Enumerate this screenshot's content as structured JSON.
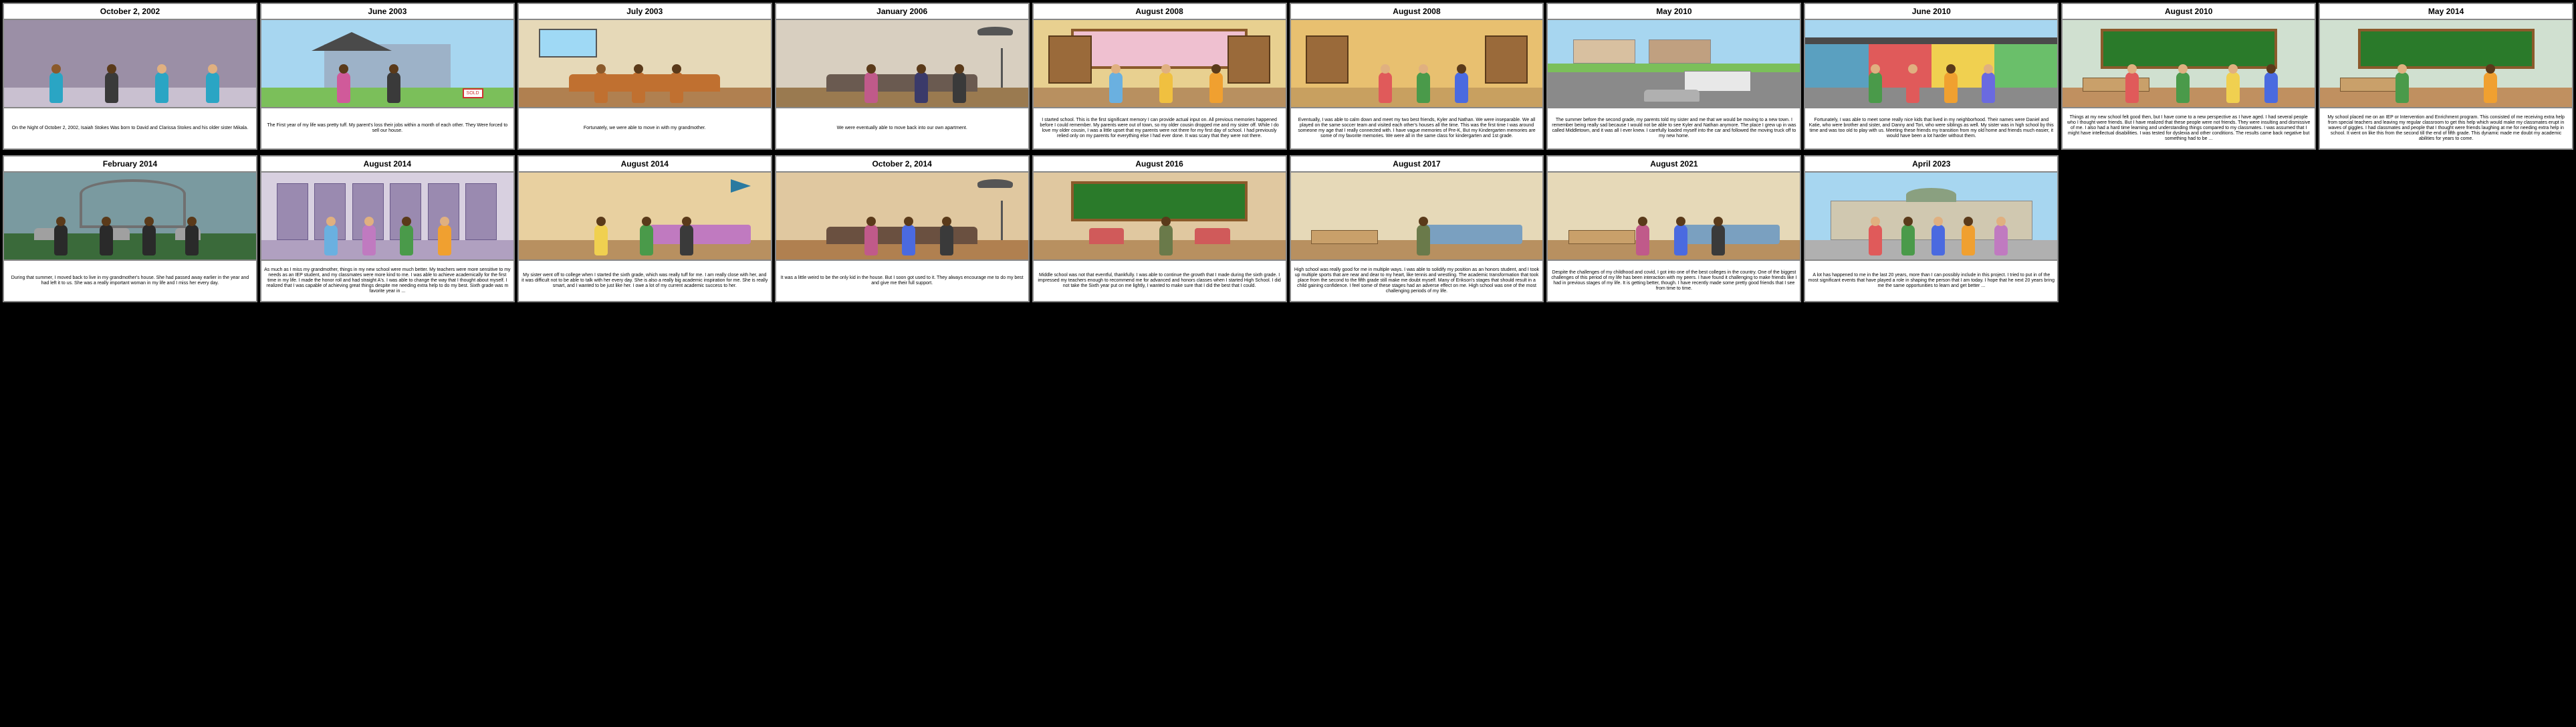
{
  "layout": {
    "rows": 2,
    "cols_row1": 10,
    "cols_row2": 8,
    "cell_border_color": "#888888",
    "page_bg": "#000000",
    "cell_bg": "#ffffff",
    "header_fontsize": 12,
    "caption_fontsize": 7
  },
  "cells": [
    {
      "date": "October 2, 2002",
      "caption": "On the Night of October 2, 2002, Isaiah Stokes Was born to David and Clarissa Stokes and his older sister Mikala.",
      "scene": {
        "type": "hospital-room",
        "wall_color": "#9b8fa6",
        "floor_color": "#c9c0d0",
        "accent_color": "#2aa5c4",
        "figures": [
          {
            "x": 18,
            "body": "#2aa5c4",
            "skin": "#8b5a2b"
          },
          {
            "x": 40,
            "body": "#3a3a3a",
            "skin": "#5a3a1a"
          },
          {
            "x": 60,
            "body": "#2aa5c4",
            "skin": "#e0b080"
          },
          {
            "x": 80,
            "body": "#2aa5c4",
            "skin": "#e0b080"
          }
        ]
      }
    },
    {
      "date": "June 2003",
      "caption": "The First year of my life was pretty tuff. My parent's loss their jobs within a month of each other. They Were forced to sell our house.",
      "scene": {
        "type": "house-exterior",
        "sky_color": "#a7d6f0",
        "grass_color": "#7bbf5a",
        "house_color": "#9db2c8",
        "roof_color": "#4a4a4a",
        "sign_text": "SOLD",
        "sign_color": "#d03030",
        "figures": [
          {
            "x": 30,
            "body": "#d05a9a",
            "skin": "#5a3a1a"
          },
          {
            "x": 50,
            "body": "#3a3a3a",
            "skin": "#5a3a1a"
          }
        ]
      }
    },
    {
      "date": "July 2003",
      "caption": "Fortunately, we were able to move in with my grandmother.",
      "scene": {
        "type": "living-room",
        "wall_color": "#e6d9b8",
        "floor_color": "#b08050",
        "sofa_color": "#c07030",
        "window_color": "#9fd9f5",
        "figures": [
          {
            "x": 30,
            "body": "#c07030",
            "skin": "#8b5a2b"
          },
          {
            "x": 45,
            "body": "#c07030",
            "skin": "#5a3a1a"
          },
          {
            "x": 60,
            "body": "#c07030",
            "skin": "#5a3a1a"
          }
        ]
      }
    },
    {
      "date": "January 2006",
      "caption": "We were eventually able to move back into our own apartment.",
      "scene": {
        "type": "apartment-living",
        "wall_color": "#d8cfc0",
        "floor_color": "#9a7a50",
        "sofa_color": "#6a5a50",
        "lamp_color": "#555555",
        "figures": [
          {
            "x": 35,
            "body": "#c05a8a",
            "skin": "#5a3a1a"
          },
          {
            "x": 55,
            "body": "#3a3a6a",
            "skin": "#5a3a1a"
          },
          {
            "x": 70,
            "body": "#3a3a3a",
            "skin": "#5a3a1a"
          }
        ]
      }
    },
    {
      "date": "August 2008",
      "caption": "I started school. This is the first significant memory I can provide actual input on. All previous memories happened before I could remember. My parents were out of town, so my older cousin dropped me and my sister off. While I do love my older cousin, I was a little upset that my parents were not there for my first day of school. I had previously relied only on my parents for everything else I had ever done. It was scary that they were not there.",
      "scene": {
        "type": "classroom",
        "wall_color": "#e8d090",
        "floor_color": "#b89060",
        "door_color": "#9a6a3a",
        "board_color": "#efc0d0",
        "figures": [
          {
            "x": 30,
            "body": "#6ab0e0",
            "skin": "#e0b080"
          },
          {
            "x": 50,
            "body": "#f0c040",
            "skin": "#e0b080"
          },
          {
            "x": 70,
            "body": "#f0a030",
            "skin": "#5a3a1a"
          }
        ]
      }
    },
    {
      "date": "August 2008",
      "caption": "Eventually, I was able to calm down and meet my two best friends, Kyler and Nathan. We were inseparable. We all played on the same soccer team and visited each other's houses all the time. This was the first time I was around someone my age that I really connected with. I have vague memories of Pre-K, But my Kindergarten memories are some of my favorite memories. We were all in the same class for kindergarten and 1st grade.",
      "scene": {
        "type": "hallway",
        "wall_color": "#e8c070",
        "floor_color": "#c8a060",
        "door_color": "#9a6a3a",
        "figures": [
          {
            "x": 35,
            "body": "#e05a5a",
            "skin": "#e0b080"
          },
          {
            "x": 50,
            "body": "#4a9a4a",
            "skin": "#e0b080"
          },
          {
            "x": 65,
            "body": "#4a6ae0",
            "skin": "#5a3a1a"
          }
        ]
      }
    },
    {
      "date": "May 2010",
      "caption": "The summer before the second grade, my parents told my sister and me that we would be moving to a new town. I remember being really sad because I would not be able to see Kyler and Nathan anymore. The place I grew up in was called Middletown, and it was all I ever knew. I carefully loaded myself into the car and followed the moving truck off to my new home.",
      "scene": {
        "type": "street-moving",
        "sky_color": "#a7d6f0",
        "road_color": "#8a8a8a",
        "grass_color": "#7bbf5a",
        "house_colors": [
          "#d8c0a0",
          "#c0a080"
        ],
        "truck_color": "#e8e8e8",
        "car_color": "#b0b0b0"
      }
    },
    {
      "date": "June 2010",
      "caption": "Fortunately, I was able to meet some really nice kids that lived in my neighborhood. Their names were Daniel and Katie, who were brother and sister, and Danny and Tori, who were siblings as well. My sister was in high school by this time and was too old to play with us. Meeting these friends my transition from my old home and friends much easier, it would have been a lot harder without them.",
      "scene": {
        "type": "rowhouses",
        "sky_color": "#a7d6f0",
        "road_color": "#8a8a8a",
        "house_colors": [
          "#5aa0c0",
          "#e05a5a",
          "#f0d050",
          "#6abf6a"
        ],
        "roof_color": "#4a4a4a",
        "figures": [
          {
            "x": 25,
            "body": "#4a9a4a",
            "skin": "#e0b080"
          },
          {
            "x": 40,
            "body": "#e05a5a",
            "skin": "#e0b080"
          },
          {
            "x": 55,
            "body": "#f0a030",
            "skin": "#5a3a1a"
          },
          {
            "x": 70,
            "body": "#6a6ae0",
            "skin": "#e0b080"
          }
        ]
      }
    },
    {
      "date": "August 2010",
      "caption": "Things at my new school felt good then, but I have come to a new perspective as I have aged. I had several people who I thought were friends. But I have realized that these people were not friends. They were insulting and dismissive of me. I also had a hard time learning and understanding things compared to my classmates. I was assumed that I might have intellectual disabilities. I was tested for dyslexia and other conditions. The results came back negative but something had to be ...",
      "scene": {
        "type": "classroom-green",
        "wall_color": "#d0e0d0",
        "floor_color": "#c09060",
        "board_color": "#2a7a2a",
        "desk_color": "#c9a06a",
        "figures": [
          {
            "x": 25,
            "body": "#e05a5a",
            "skin": "#e0b080"
          },
          {
            "x": 45,
            "body": "#4a9a4a",
            "skin": "#e0b080"
          },
          {
            "x": 65,
            "body": "#f0d050",
            "skin": "#e0b080"
          },
          {
            "x": 80,
            "body": "#4a6ae0",
            "skin": "#5a3a1a"
          }
        ]
      }
    },
    {
      "date": "May 2014",
      "caption": "My school placed me on an IEP or Intervention and Enrichment program. This consisted of me receiving extra help from special teachers and leaving my regular classroom to get this help which would make my classmates erupt in waves of giggles. I had classmates and people that I thought were friends laughing at me for needing extra help in school. It went on like this from the second till the end of fifth grade. This dynamic made me doubt my academic abilities for years to come.",
      "scene": {
        "type": "classroom-green",
        "wall_color": "#d0e0d0",
        "floor_color": "#c09060",
        "board_color": "#2a7a2a",
        "desk_color": "#c9a06a",
        "figures": [
          {
            "x": 30,
            "body": "#4a9a4a",
            "skin": "#e0b080"
          },
          {
            "x": 65,
            "body": "#f0a030",
            "skin": "#5a3a1a"
          }
        ]
      }
    },
    {
      "date": "February 2014",
      "caption": "During that summer, I moved back to live in my grandmother's house. She had passed away earlier in the year and had left it to us. She was a really important woman in my life and I miss her every day.",
      "scene": {
        "type": "cemetery",
        "sky_color": "#7a9aa0",
        "grass_color": "#3a6a3a",
        "stone_color": "#a0a0a0",
        "gate_color": "#707070",
        "figures": [
          {
            "x": 20,
            "body": "#2a2a2a",
            "skin": "#5a3a1a"
          },
          {
            "x": 38,
            "body": "#2a2a2a",
            "skin": "#5a3a1a"
          },
          {
            "x": 55,
            "body": "#2a2a2a",
            "skin": "#5a3a1a"
          },
          {
            "x": 72,
            "body": "#2a2a2a",
            "skin": "#5a3a1a"
          }
        ]
      }
    },
    {
      "date": "August 2014",
      "caption": "As much as I miss my grandmother, things in my new school were much better. My teachers were more sensitive to my needs as an IEP student, and my classmates were more kind to me. I was able to achieve academically for the first time in my life. I made the honor roll and had straight A's. I was able to change the way that I thought about myself. I realized that I was capable of achieving great things despite me needing extra help to do my best. Sixth grade was m favorite year in ...",
      "scene": {
        "type": "school-hallway",
        "wall_color": "#d8d0e0",
        "floor_color": "#b0a0c0",
        "locker_color": "#9a8ab0",
        "figures": [
          {
            "x": 25,
            "body": "#6ab0e0",
            "skin": "#e0b080"
          },
          {
            "x": 40,
            "body": "#c07ac0",
            "skin": "#e0b080"
          },
          {
            "x": 55,
            "body": "#4a9a4a",
            "skin": "#5a3a1a"
          },
          {
            "x": 70,
            "body": "#f0a030",
            "skin": "#e0b080"
          }
        ]
      }
    },
    {
      "date": "August 2014",
      "caption": "My sister went off to college when I started the sixth grade, which was really tuff for me. I am really close with her, and it was difficult not to be able to talk with her every day. She is also a really big academic inspiration for me. She is really smart, and I wanted to be just like her. I owe a lot of my current academic success to her.",
      "scene": {
        "type": "bedroom",
        "wall_color": "#e8d0a0",
        "floor_color": "#b89060",
        "bed_color": "#c07ac0",
        "pennant_color": "#2a7aa0",
        "figures": [
          {
            "x": 30,
            "body": "#f0d050",
            "skin": "#5a3a1a"
          },
          {
            "x": 48,
            "body": "#4a9a4a",
            "skin": "#5a3a1a"
          },
          {
            "x": 64,
            "body": "#3a3a3a",
            "skin": "#5a3a1a"
          }
        ]
      }
    },
    {
      "date": "October 2, 2014",
      "caption": "It was a little weird to be the only kid in the house. But I soon got used to it. They always encourage me to do my best and give me their full support.",
      "scene": {
        "type": "home-interior",
        "wall_color": "#e0c8a0",
        "floor_color": "#b08050",
        "sofa_color": "#6a5040",
        "lamp_color": "#555555",
        "figures": [
          {
            "x": 35,
            "body": "#c05a8a",
            "skin": "#5a3a1a"
          },
          {
            "x": 50,
            "body": "#4a6ae0",
            "skin": "#5a3a1a"
          },
          {
            "x": 65,
            "body": "#3a3a3a",
            "skin": "#5a3a1a"
          }
        ]
      }
    },
    {
      "date": "August 2016",
      "caption": "Middle school was not that eventful, thankfully. I was able to continue the growth that I made during the sixth grade. I impressed my teachers enough to recommend me for advanced and honors classes when I started High School. I did not take the Sixth year put on me lightly, I wanted to make sure that I did the best that I could.",
      "scene": {
        "type": "classroom-front",
        "wall_color": "#e0c8a0",
        "floor_color": "#b89060",
        "board_color": "#2a7a2a",
        "chair_color": "#d05a5a",
        "figures": [
          {
            "x": 50,
            "body": "#6a7a4a",
            "skin": "#5a3a1a"
          }
        ]
      }
    },
    {
      "date": "August 2017",
      "caption": "High school was really good for me in multiple ways. I was able to solidify my position as an honors student, and I took up multiple sports that are near and dear to my heart, like tennis and wrestling. The academic transformation that took place from the second to the fifth grade still make me doubt myself. Many of Erikson's stages that should result in a child gaining confidence. I feel some of these stages had an adverse effect on me. High school was one of the most challenging periods of my life.",
      "scene": {
        "type": "dorm-room",
        "wall_color": "#e6d9b8",
        "floor_color": "#b89060",
        "bed_color": "#7aa0c0",
        "desk_color": "#c9a06a",
        "figures": [
          {
            "x": 50,
            "body": "#6a7a4a",
            "skin": "#5a3a1a"
          }
        ]
      }
    },
    {
      "date": "August 2021",
      "caption": "Despite the challenges of my childhood and covid, I got into one of the best colleges in the country. One of the biggest challenges of this period of my life has been interaction with my peers. I have found it challenging to make friends like I had in previous stages of my life. It is getting better, though. I have recently made some pretty good friends that I see from time to time.",
      "scene": {
        "type": "dorm-double",
        "wall_color": "#e6d9b8",
        "floor_color": "#b89060",
        "bed_color": "#7aa0c0",
        "desk_color": "#c9a06a",
        "figures": [
          {
            "x": 35,
            "body": "#c05a8a",
            "skin": "#5a3a1a"
          },
          {
            "x": 50,
            "body": "#4a6ae0",
            "skin": "#5a3a1a"
          },
          {
            "x": 65,
            "body": "#3a3a3a",
            "skin": "#5a3a1a"
          }
        ]
      }
    },
    {
      "date": "April 2023",
      "caption": "A lot has happened to me in the last 20 years, more than I can possibly include in this project. I tried to put in of the most significant events that have played a role in shaping the person that I am today. I hope that he next 20 years bring me the same opportunities to learn and get better ...",
      "scene": {
        "type": "campus-exterior",
        "sky_color": "#a7d6f0",
        "ground_color": "#b0b0b0",
        "building_color": "#d0c8b0",
        "dome_color": "#8aa080",
        "figures": [
          {
            "x": 25,
            "body": "#e05a5a",
            "skin": "#e0b080"
          },
          {
            "x": 38,
            "body": "#4a9a4a",
            "skin": "#5a3a1a"
          },
          {
            "x": 50,
            "body": "#4a6ae0",
            "skin": "#e0b080"
          },
          {
            "x": 62,
            "body": "#f0a030",
            "skin": "#5a3a1a"
          },
          {
            "x": 75,
            "body": "#c07ac0",
            "skin": "#e0b080"
          }
        ]
      }
    }
  ]
}
